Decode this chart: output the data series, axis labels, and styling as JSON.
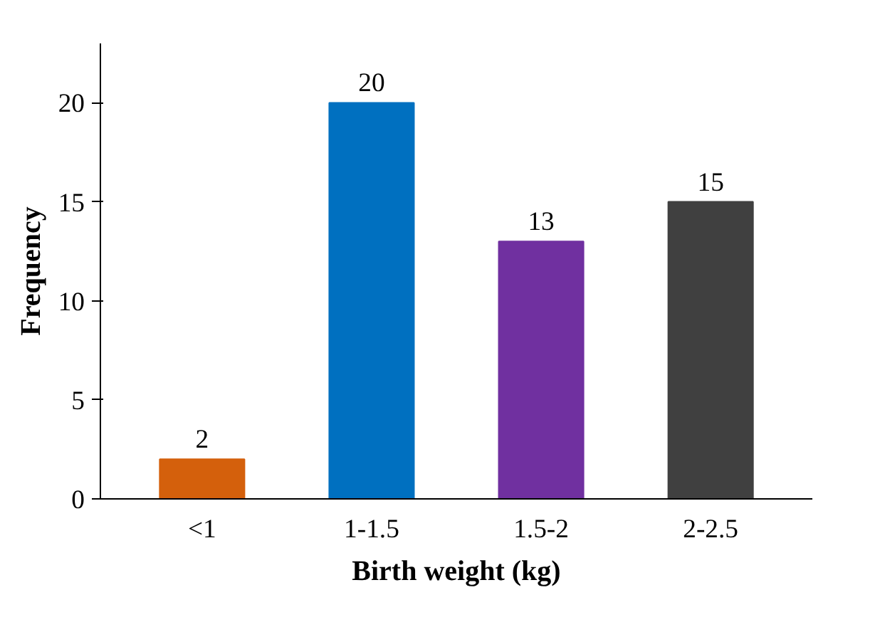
{
  "chart_data": {
    "type": "bar",
    "xlabel": "Birth weight (kg)",
    "ylabel": "Frequency",
    "categories": [
      "<1",
      "1-1.5",
      "1.5-2",
      "2-2.5"
    ],
    "values": [
      2,
      20,
      13,
      15
    ],
    "colors": [
      "#d4600c",
      "#0070c0",
      "#7030a0",
      "#404040"
    ],
    "ylim": [
      0,
      23
    ],
    "yticks": [
      0,
      5,
      10,
      15,
      20
    ],
    "grid": false,
    "data_labels": true
  }
}
